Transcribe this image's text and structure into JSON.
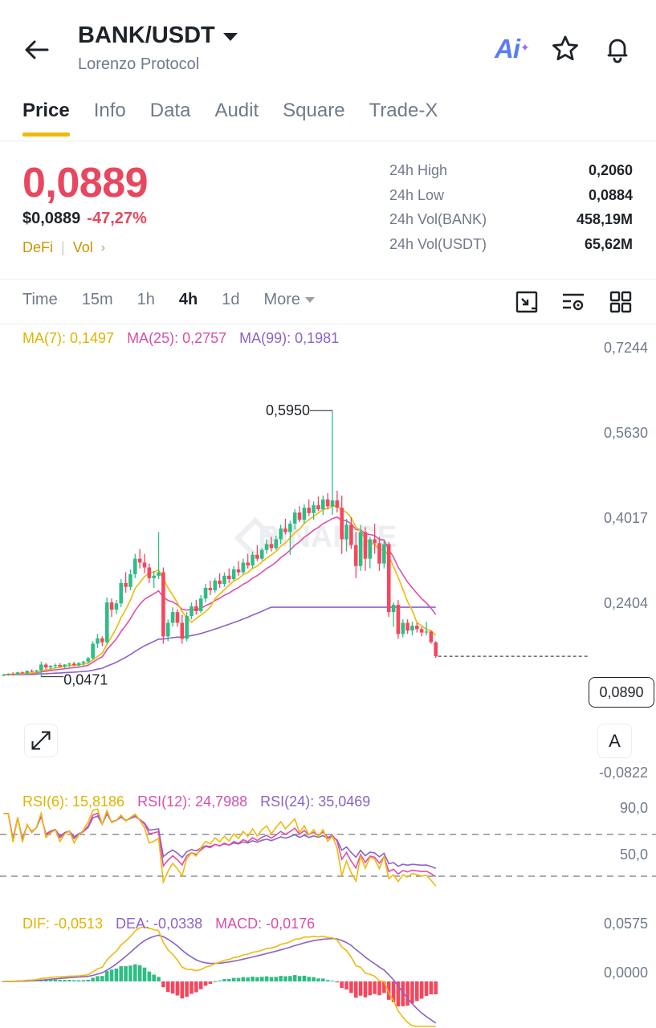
{
  "header": {
    "pair": "BANK/USDT",
    "subtitle": "Lorenzo Protocol",
    "ai_label": "Ai"
  },
  "tabs": [
    "Price",
    "Info",
    "Data",
    "Audit",
    "Square",
    "Trade-X"
  ],
  "price": {
    "last": "0,0889",
    "usd": "$0,0889",
    "change": "-47,27%",
    "tag1": "DeFi",
    "tag2": "Vol"
  },
  "stats": [
    {
      "k": "24h High",
      "v": "0,2060"
    },
    {
      "k": "24h Low",
      "v": "0,0884"
    },
    {
      "k": "24h Vol(BANK)",
      "v": "458,19M"
    },
    {
      "k": "24h Vol(USDT)",
      "v": "65,62M"
    }
  ],
  "intervals": {
    "time": "Time",
    "i15m": "15m",
    "i1h": "1h",
    "i4h": "4h",
    "i1d": "1d",
    "more": "More"
  },
  "ma": {
    "ma7": "MA(7): 0,1497",
    "ma25": "MA(25): 0,2757",
    "ma99": "MA(99): 0,1981"
  },
  "price_axis": [
    "0,7244",
    "0,5630",
    "0,4017",
    "0,2404",
    "-0,0822"
  ],
  "high_marker": "0,5950",
  "low_marker": "0,0471",
  "current_price_box": "0,0890",
  "a_button": "A",
  "rsi": {
    "rsi6": "RSI(6): 15,8186",
    "rsi12": "RSI(12): 24,7988",
    "rsi24": "RSI(24): 35,0469",
    "axis": [
      "90,0",
      "50,0"
    ]
  },
  "macd": {
    "dif": "DIF: -0,0513",
    "dea": "DEA: -0,0338",
    "macd": "MACD: -0,0176",
    "axis": [
      "0,0575",
      "0,0000"
    ]
  },
  "watermark": "BINANCE",
  "colors": {
    "up": "#2ebd85",
    "down": "#f6465d",
    "ma7": "#f0b90b",
    "ma25": "#e04fa8",
    "ma99": "#8a63c9",
    "accent": "#f0b90b"
  },
  "chart_data": {
    "type": "candlestick",
    "interval": "4h",
    "ohlc": [
      [
        0.05,
        0.052,
        0.048,
        0.051
      ],
      [
        0.051,
        0.054,
        0.049,
        0.053
      ],
      [
        0.053,
        0.056,
        0.051,
        0.052
      ],
      [
        0.052,
        0.057,
        0.05,
        0.056
      ],
      [
        0.056,
        0.058,
        0.053,
        0.054
      ],
      [
        0.054,
        0.06,
        0.052,
        0.059
      ],
      [
        0.059,
        0.062,
        0.056,
        0.058
      ],
      [
        0.058,
        0.061,
        0.054,
        0.06
      ],
      [
        0.06,
        0.078,
        0.047,
        0.072
      ],
      [
        0.072,
        0.075,
        0.062,
        0.066
      ],
      [
        0.066,
        0.071,
        0.06,
        0.069
      ],
      [
        0.069,
        0.074,
        0.064,
        0.071
      ],
      [
        0.071,
        0.075,
        0.066,
        0.068
      ],
      [
        0.068,
        0.073,
        0.064,
        0.072
      ],
      [
        0.072,
        0.076,
        0.067,
        0.074
      ],
      [
        0.074,
        0.078,
        0.069,
        0.071
      ],
      [
        0.071,
        0.077,
        0.066,
        0.075
      ],
      [
        0.075,
        0.08,
        0.07,
        0.078
      ],
      [
        0.078,
        0.088,
        0.074,
        0.085
      ],
      [
        0.085,
        0.12,
        0.082,
        0.115
      ],
      [
        0.115,
        0.135,
        0.106,
        0.126
      ],
      [
        0.126,
        0.13,
        0.11,
        0.118
      ],
      [
        0.118,
        0.21,
        0.115,
        0.2
      ],
      [
        0.2,
        0.208,
        0.17,
        0.185
      ],
      [
        0.185,
        0.205,
        0.176,
        0.198
      ],
      [
        0.198,
        0.248,
        0.19,
        0.24
      ],
      [
        0.24,
        0.262,
        0.22,
        0.232
      ],
      [
        0.232,
        0.268,
        0.225,
        0.258
      ],
      [
        0.258,
        0.3,
        0.25,
        0.29
      ],
      [
        0.29,
        0.31,
        0.27,
        0.282
      ],
      [
        0.282,
        0.3,
        0.26,
        0.272
      ],
      [
        0.272,
        0.28,
        0.24,
        0.25
      ],
      [
        0.25,
        0.265,
        0.23,
        0.255
      ],
      [
        0.255,
        0.345,
        0.248,
        0.262
      ],
      [
        0.262,
        0.272,
        0.115,
        0.13
      ],
      [
        0.13,
        0.165,
        0.12,
        0.158
      ],
      [
        0.158,
        0.19,
        0.15,
        0.18
      ],
      [
        0.18,
        0.186,
        0.15,
        0.158
      ],
      [
        0.158,
        0.175,
        0.115,
        0.125
      ],
      [
        0.125,
        0.18,
        0.12,
        0.172
      ],
      [
        0.172,
        0.2,
        0.165,
        0.192
      ],
      [
        0.192,
        0.205,
        0.175,
        0.182
      ],
      [
        0.182,
        0.215,
        0.178,
        0.208
      ],
      [
        0.208,
        0.238,
        0.2,
        0.23
      ],
      [
        0.23,
        0.245,
        0.215,
        0.225
      ],
      [
        0.225,
        0.25,
        0.22,
        0.245
      ],
      [
        0.245,
        0.26,
        0.23,
        0.238
      ],
      [
        0.238,
        0.262,
        0.232,
        0.255
      ],
      [
        0.255,
        0.27,
        0.24,
        0.248
      ],
      [
        0.248,
        0.275,
        0.245,
        0.268
      ],
      [
        0.268,
        0.285,
        0.255,
        0.262
      ],
      [
        0.262,
        0.29,
        0.258,
        0.282
      ],
      [
        0.282,
        0.3,
        0.27,
        0.276
      ],
      [
        0.276,
        0.305,
        0.27,
        0.298
      ],
      [
        0.298,
        0.318,
        0.285,
        0.29
      ],
      [
        0.29,
        0.312,
        0.286,
        0.308
      ],
      [
        0.308,
        0.33,
        0.3,
        0.32
      ],
      [
        0.32,
        0.335,
        0.305,
        0.312
      ],
      [
        0.312,
        0.338,
        0.308,
        0.33
      ],
      [
        0.33,
        0.36,
        0.32,
        0.352
      ],
      [
        0.352,
        0.372,
        0.34,
        0.345
      ],
      [
        0.345,
        0.368,
        0.298,
        0.362
      ],
      [
        0.362,
        0.392,
        0.35,
        0.385
      ],
      [
        0.385,
        0.398,
        0.365,
        0.37
      ],
      [
        0.37,
        0.402,
        0.362,
        0.395
      ],
      [
        0.395,
        0.412,
        0.378,
        0.384
      ],
      [
        0.384,
        0.408,
        0.37,
        0.4
      ],
      [
        0.4,
        0.418,
        0.388,
        0.392
      ],
      [
        0.392,
        0.42,
        0.38,
        0.412
      ],
      [
        0.412,
        0.425,
        0.392,
        0.398
      ],
      [
        0.398,
        0.595,
        0.38,
        0.41
      ],
      [
        0.41,
        0.43,
        0.385,
        0.395
      ],
      [
        0.395,
        0.42,
        0.3,
        0.33
      ],
      [
        0.33,
        0.372,
        0.305,
        0.36
      ],
      [
        0.36,
        0.375,
        0.31,
        0.318
      ],
      [
        0.318,
        0.345,
        0.25,
        0.275
      ],
      [
        0.275,
        0.36,
        0.265,
        0.345
      ],
      [
        0.345,
        0.355,
        0.265,
        0.29
      ],
      [
        0.29,
        0.335,
        0.27,
        0.33
      ],
      [
        0.33,
        0.362,
        0.3,
        0.322
      ],
      [
        0.322,
        0.335,
        0.265,
        0.28
      ],
      [
        0.28,
        0.33,
        0.27,
        0.32
      ],
      [
        0.32,
        0.325,
        0.17,
        0.18
      ],
      [
        0.18,
        0.2,
        0.15,
        0.195
      ],
      [
        0.195,
        0.205,
        0.125,
        0.135
      ],
      [
        0.135,
        0.165,
        0.128,
        0.158
      ],
      [
        0.158,
        0.165,
        0.135,
        0.142
      ],
      [
        0.142,
        0.16,
        0.132,
        0.152
      ],
      [
        0.152,
        0.158,
        0.138,
        0.145
      ],
      [
        0.145,
        0.15,
        0.13,
        0.138
      ],
      [
        0.138,
        0.16,
        0.132,
        0.14
      ],
      [
        0.14,
        0.142,
        0.115,
        0.118
      ],
      [
        0.118,
        0.12,
        0.086,
        0.089
      ]
    ],
    "price_scale": {
      "top_value": 0.7244,
      "top_label_row": 0,
      "ticks": [
        0.7244,
        0.563,
        0.4017,
        0.2404,
        -0.0822
      ]
    },
    "current_price": 0.089,
    "rsi_scale": [
      90,
      50
    ],
    "macd_scale": [
      0.0575,
      0.0
    ]
  }
}
